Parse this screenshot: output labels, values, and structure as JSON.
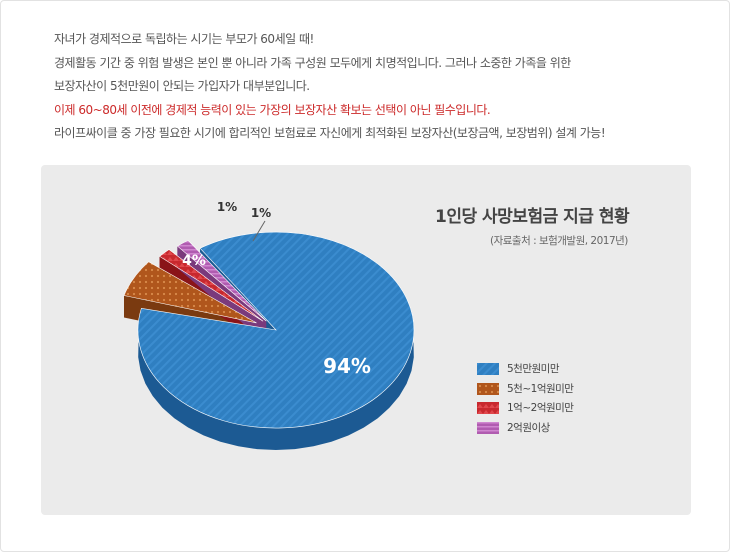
{
  "intro": {
    "line1": "자녀가 경제적으로 독립하는 시기는 부모가 60세일 때!",
    "line2": "경제활동 기간 중 위험 발생은 본인 뿐 아니라 가족 구성원 모두에게 치명적입니다. 그러나 소중한 가족을 위한",
    "line3": "보장자산이 5천만원이 안되는 가입자가 대부분입니다.",
    "line4": "이제 60~80세 이전에 경제적 능력이 있는 가장의 보장자산 확보는 선택이 아닌 필수입니다.",
    "line5": "라이프싸이클 중 가장 필요한 시기에 합리적인 보험료로 자신에게 최적화된 보장자산(보장금액, 보장범위) 설계 가능!"
  },
  "chart_data": {
    "type": "pie",
    "title": "1인당 사망보험금 지급 현황",
    "subtitle": "(자료출처 : 보험개발원, 2017년)",
    "categories": [
      "5천만원미만",
      "5천~1억원미만",
      "1억~2억원미만",
      "2억원이상"
    ],
    "values": [
      94,
      4,
      1,
      1
    ],
    "data_labels": [
      "94%",
      "4%",
      "1%",
      "1%"
    ],
    "colors": [
      "#2f7fc1",
      "#b0561c",
      "#c8282e",
      "#b05cb0"
    ],
    "side_colors": [
      "#1c5a93",
      "#7a3a10",
      "#8a1418",
      "#7a3a7c"
    ],
    "exploded": [
      false,
      true,
      true,
      true
    ],
    "legend_position": "right"
  }
}
